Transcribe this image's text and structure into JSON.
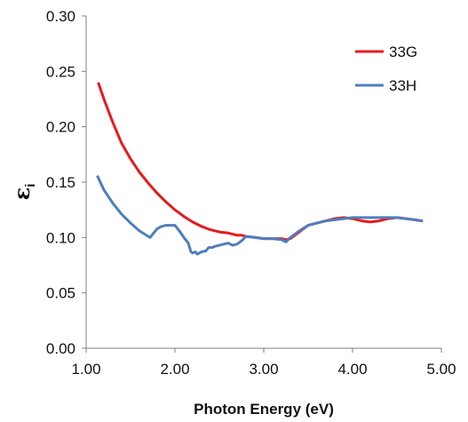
{
  "chart_data": {
    "type": "line",
    "xlabel": "Photon Energy (eV)",
    "ylabel": "εi",
    "xlim": [
      1.0,
      5.0
    ],
    "ylim": [
      0.0,
      0.3
    ],
    "xticks": [
      "1.00",
      "2.00",
      "3.00",
      "4.00",
      "5.00"
    ],
    "yticks": [
      "0.00",
      "0.05",
      "0.10",
      "0.15",
      "0.20",
      "0.25",
      "0.30"
    ],
    "grid": false,
    "legend": "top-right",
    "series": [
      {
        "name": "33G",
        "color": "#e8191c",
        "x": [
          1.14,
          1.2,
          1.3,
          1.4,
          1.5,
          1.6,
          1.7,
          1.8,
          1.9,
          2.0,
          2.1,
          2.2,
          2.3,
          2.4,
          2.5,
          2.6,
          2.7,
          2.75,
          2.8,
          2.9,
          3.0,
          3.1,
          3.2,
          3.25,
          3.3,
          3.4,
          3.5,
          3.6,
          3.7,
          3.8,
          3.9,
          4.0,
          4.1,
          4.2,
          4.3,
          4.4,
          4.5,
          4.6,
          4.7,
          4.78
        ],
        "y": [
          0.239,
          0.225,
          0.204,
          0.185,
          0.171,
          0.159,
          0.149,
          0.14,
          0.132,
          0.125,
          0.119,
          0.114,
          0.11,
          0.107,
          0.105,
          0.104,
          0.102,
          0.102,
          0.101,
          0.1,
          0.099,
          0.099,
          0.099,
          0.098,
          0.099,
          0.105,
          0.111,
          0.113,
          0.115,
          0.117,
          0.118,
          0.117,
          0.115,
          0.114,
          0.115,
          0.117,
          0.118,
          0.117,
          0.116,
          0.115
        ]
      },
      {
        "name": "33H",
        "color": "#4e7ebc",
        "x": [
          1.13,
          1.2,
          1.3,
          1.4,
          1.5,
          1.6,
          1.7,
          1.72,
          1.75,
          1.8,
          1.85,
          1.9,
          1.95,
          2.0,
          2.05,
          2.1,
          2.15,
          2.18,
          2.2,
          2.23,
          2.25,
          2.3,
          2.35,
          2.38,
          2.42,
          2.45,
          2.5,
          2.55,
          2.6,
          2.65,
          2.7,
          2.75,
          2.8,
          2.9,
          3.0,
          3.1,
          3.2,
          3.25,
          3.3,
          3.4,
          3.5,
          3.6,
          3.7,
          3.8,
          3.9,
          4.0,
          4.1,
          4.2,
          4.3,
          4.4,
          4.5,
          4.6,
          4.7,
          4.78
        ],
        "y": [
          0.155,
          0.143,
          0.131,
          0.121,
          0.113,
          0.106,
          0.101,
          0.1,
          0.103,
          0.108,
          0.11,
          0.111,
          0.111,
          0.111,
          0.106,
          0.1,
          0.095,
          0.087,
          0.086,
          0.087,
          0.085,
          0.087,
          0.088,
          0.091,
          0.091,
          0.092,
          0.093,
          0.094,
          0.095,
          0.093,
          0.094,
          0.097,
          0.101,
          0.1,
          0.099,
          0.099,
          0.098,
          0.096,
          0.1,
          0.106,
          0.111,
          0.113,
          0.115,
          0.116,
          0.117,
          0.118,
          0.118,
          0.118,
          0.118,
          0.118,
          0.118,
          0.117,
          0.116,
          0.115
        ]
      }
    ]
  }
}
